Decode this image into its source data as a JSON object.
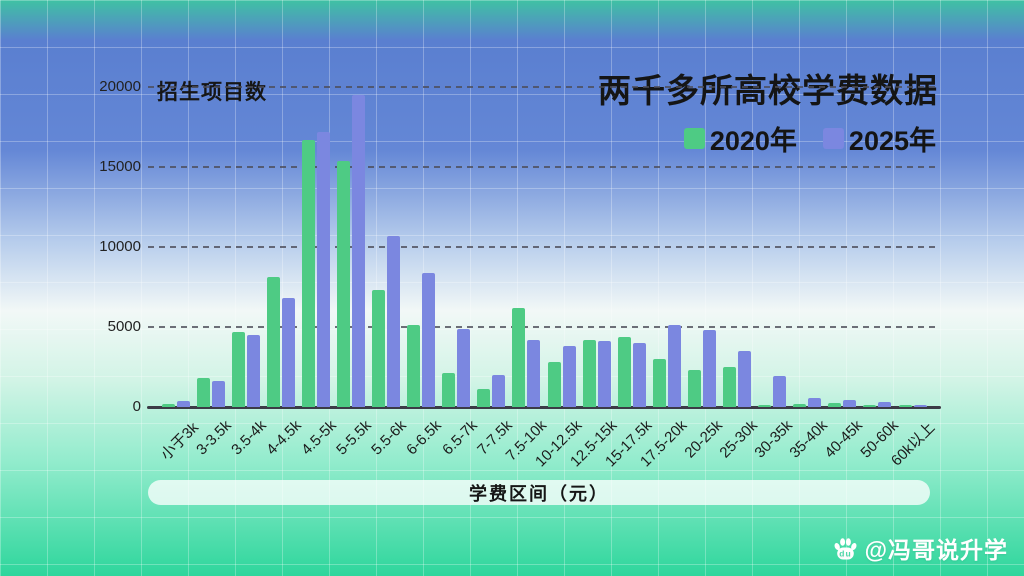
{
  "chart": {
    "title": "两千多所高校学费数据",
    "y_axis_title": "招生项目数",
    "x_axis_pill": "学费区间（元）"
  },
  "watermark": {
    "icon": "baidu-paw-icon",
    "handle": "@冯哥说升学"
  },
  "colors": {
    "series_2020": "#4ecb84",
    "series_2025": "#7b87e0",
    "bg_top_blue": "#5a7fd0",
    "bg_bottom_green": "#2ed69c",
    "text": "#151515"
  },
  "chart_data": {
    "type": "bar",
    "title": "两千多所高校学费数据",
    "xlabel": "学费区间（元）",
    "ylabel": "招生项目数",
    "ylim": [
      0,
      20000
    ],
    "yticks": [
      0,
      5000,
      10000,
      15000,
      20000
    ],
    "grid": "horizontal-dashed",
    "legend_position": "top-right",
    "categories": [
      "小于3k",
      "3-3.5k",
      "3.5-4k",
      "4-4.5k",
      "4.5-5k",
      "5-5.5k",
      "5.5-6k",
      "6-6.5k",
      "6.5-7k",
      "7-7.5k",
      "7.5-10k",
      "10-12.5k",
      "12.5-15k",
      "15-17.5k",
      "17.5-20k",
      "20-25k",
      "25-30k",
      "30-35k",
      "35-40k",
      "40-45k",
      "50-60k",
      "60k以上"
    ],
    "series": [
      {
        "name": "2020年",
        "color": "#4ecb84",
        "values": [
          200,
          1800,
          4700,
          8100,
          16700,
          15400,
          7300,
          5100,
          2100,
          1100,
          6200,
          2800,
          4200,
          4400,
          3000,
          2300,
          2500,
          150,
          200,
          250,
          120,
          60
        ]
      },
      {
        "name": "2025年",
        "color": "#7b87e0",
        "values": [
          350,
          1600,
          4500,
          6800,
          17200,
          19500,
          10700,
          8400,
          4900,
          2000,
          4200,
          3800,
          4100,
          4000,
          5100,
          4800,
          3500,
          1950,
          550,
          450,
          300,
          140
        ]
      }
    ]
  }
}
